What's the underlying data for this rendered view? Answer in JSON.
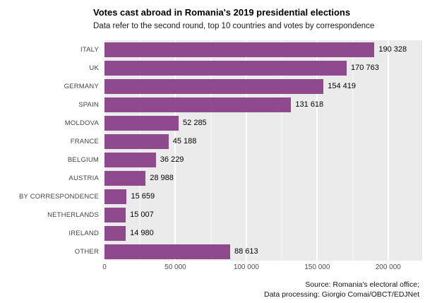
{
  "chart_data": {
    "type": "bar",
    "orientation": "horizontal",
    "title": "Votes cast abroad in Romania's 2019 presidential elections",
    "subtitle": "Data refer to the second round, top 10 countries and votes by correspondence",
    "categories": [
      "ITALY",
      "UK",
      "GERMANY",
      "SPAIN",
      "MOLDOVA",
      "FRANCE",
      "BELGIUM",
      "AUSTRIA",
      "BY CORRESPONDENCE",
      "NETHERLANDS",
      "IRELAND",
      "OTHER"
    ],
    "values": [
      190328,
      170763,
      154419,
      131618,
      52285,
      45188,
      36229,
      28988,
      15659,
      15007,
      14980,
      88613
    ],
    "value_labels": [
      "190 328",
      "170 763",
      "154 419",
      "131 618",
      "52 285",
      "45 188",
      "36 229",
      "28 988",
      "15 659",
      "15 007",
      "14 980",
      "88 613"
    ],
    "x_ticks": [
      0,
      50000,
      100000,
      150000,
      200000
    ],
    "x_tick_labels": [
      "0",
      "50 000",
      "100 000",
      "150 000",
      "200 000"
    ],
    "xlim": [
      0,
      224000
    ],
    "ylabel": "",
    "xlabel": "",
    "legend": "none",
    "grid": "major-vertical-white",
    "bar_color": "#8e4a8c",
    "panel_background": "#ebebeb",
    "gridline_color": "#ffffff",
    "source_line_1": "Source: Romania's electoral office;",
    "source_line_2": "Data processing: Giorgio Comai/OBCT/EDJNet"
  }
}
